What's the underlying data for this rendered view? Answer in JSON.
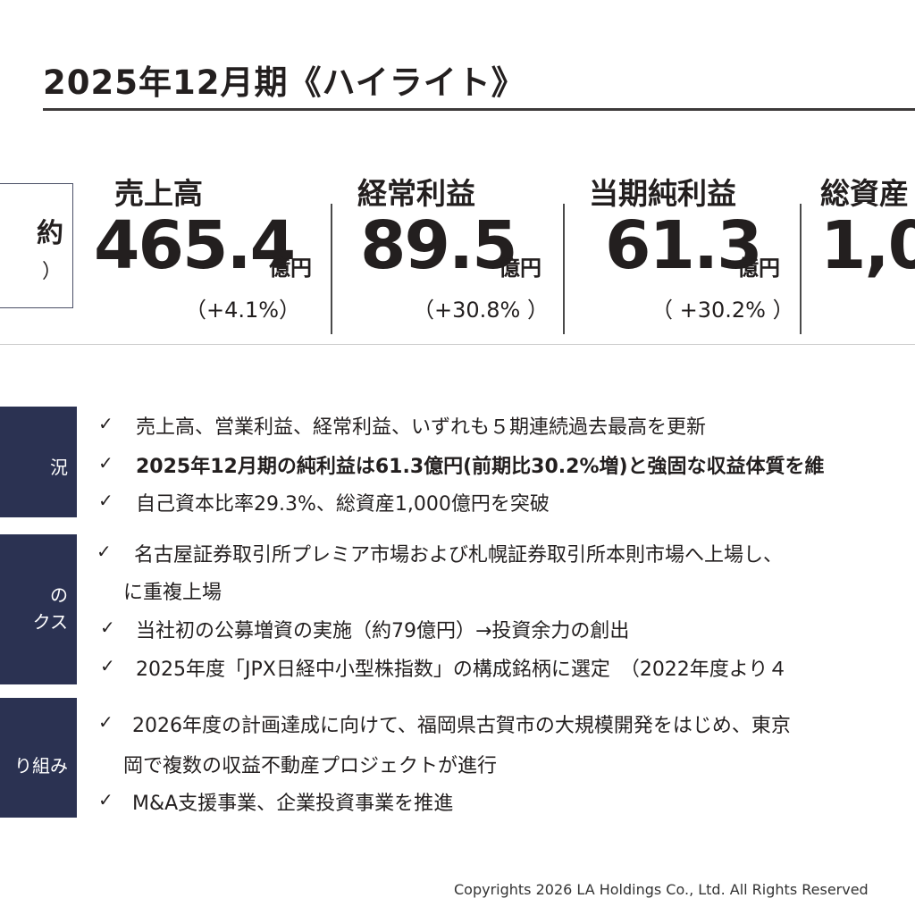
{
  "title": "2025年12月期《ハイライト》",
  "left_box": {
    "line1": "約",
    "line2": "）"
  },
  "kpis": [
    {
      "label": "売上高",
      "value": "465.4",
      "unit": "億円",
      "change": "（+4.1%）"
    },
    {
      "label": "経常利益",
      "value": "89.5",
      "unit": "億円",
      "change": "（+30.8% ）"
    },
    {
      "label": "当期純利益",
      "value": "61.3",
      "unit": "億円",
      "change": "（ +30.2% ）"
    },
    {
      "label": "総資産",
      "value": "1,0"
    }
  ],
  "sections": [
    {
      "category": "況",
      "items": [
        "売上高、営業利益、経常利益、いずれも５期連続過去最高を更新",
        "2025年12月期の純利益は61.3億円(前期比30.2%増)と強固な収益体質を維",
        "自己資本比率29.3%、総資産1,000億円を突破"
      ]
    },
    {
      "category": [
        "の",
        "クス"
      ],
      "items": [
        "名古屋証券取引所プレミア市場および札幌証券取引所本則市場へ上場し、",
        "に重複上場",
        "当社初の公募増資の実施（約79億円）→投資余力の創出",
        "2025年度「JPX日経中小型株指数」の構成銘柄に選定　（2022年度より４"
      ]
    },
    {
      "category": "り組み",
      "items": [
        "2026年度の計画達成に向けて、福岡県古賀市の大規模開発をはじめ、東京",
        "岡で複数の収益不動産プロジェクトが進行",
        "M&A支援事業、企業投資事業を推進"
      ]
    }
  ],
  "check_mark": "✓",
  "footer": "Copyrights 2026 LA Holdings Co., Ltd.  All Rights Reserved"
}
